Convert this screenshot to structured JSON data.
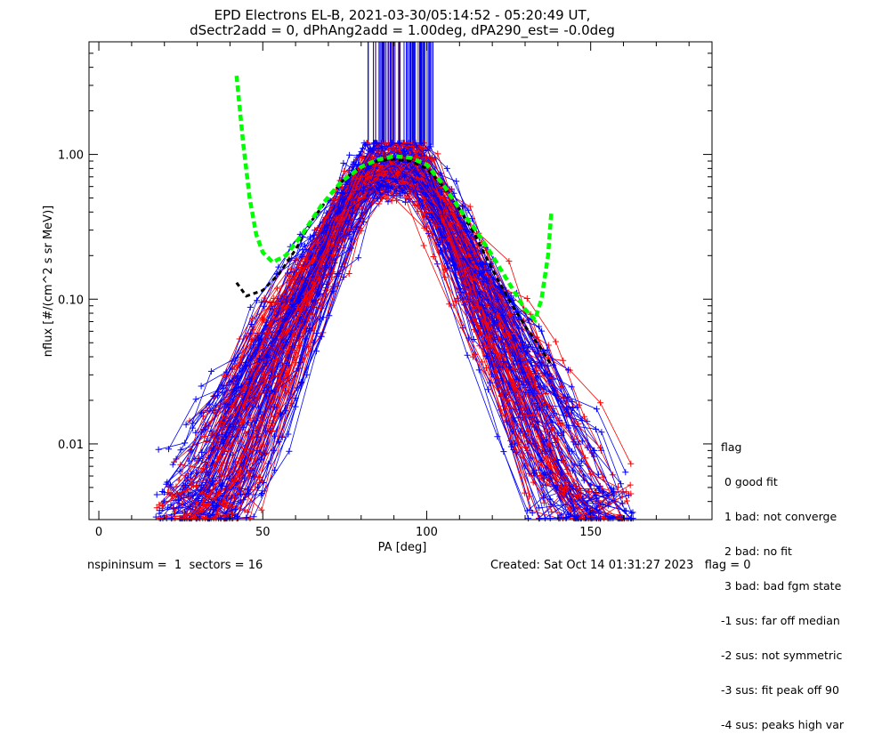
{
  "chart_data": {
    "type": "line",
    "title_line1": "EPD Electrons EL-B, 2021-03-30/05:14:52 - 05:20:49 UT,",
    "title_line2": "dSectr2add = 0, dPhAng2add = 1.00deg, dPA290_est=  -0.0deg",
    "xlabel": "PA [deg]",
    "ylabel": "nflux [#/(cm^2 s sr MeV)]",
    "xlim": [
      -3,
      187
    ],
    "ylim": [
      0.003,
      6.0
    ],
    "yscale": "log",
    "x_ticks": [
      0,
      50,
      100,
      150
    ],
    "x_tick_labels": [
      "0",
      "50",
      "100",
      "150"
    ],
    "y_ticks": [
      0.01,
      0.1,
      1.0
    ],
    "y_tick_labels": [
      "0.01",
      "0.10",
      "1.00"
    ],
    "colors": {
      "red": "#ff0000",
      "blue": "#0000ff",
      "green": "#00ff00",
      "black": "#000000",
      "purple": "#5a1a7a"
    },
    "fit_green_left": [
      [
        42,
        3.5
      ],
      [
        44,
        1.2
      ],
      [
        46,
        0.5
      ],
      [
        48,
        0.28
      ],
      [
        50,
        0.21
      ],
      [
        53,
        0.18
      ],
      [
        57,
        0.2
      ],
      [
        62,
        0.28
      ],
      [
        68,
        0.45
      ],
      [
        74,
        0.65
      ],
      [
        80,
        0.82
      ],
      [
        85,
        0.92
      ],
      [
        90,
        0.97
      ],
      [
        95,
        0.95
      ],
      [
        100,
        0.85
      ],
      [
        105,
        0.62
      ],
      [
        110,
        0.42
      ],
      [
        115,
        0.3
      ],
      [
        120,
        0.2
      ],
      [
        125,
        0.13
      ],
      [
        130,
        0.085
      ],
      [
        133,
        0.072
      ],
      [
        135,
        0.1
      ],
      [
        137,
        0.2
      ],
      [
        138,
        0.4
      ]
    ],
    "fit_black": [
      [
        42,
        0.13
      ],
      [
        45,
        0.105
      ],
      [
        50,
        0.115
      ],
      [
        55,
        0.15
      ],
      [
        60,
        0.22
      ],
      [
        65,
        0.35
      ],
      [
        70,
        0.5
      ],
      [
        75,
        0.68
      ],
      [
        80,
        0.82
      ],
      [
        85,
        0.9
      ],
      [
        90,
        0.93
      ],
      [
        95,
        0.9
      ],
      [
        100,
        0.8
      ],
      [
        105,
        0.6
      ],
      [
        110,
        0.42
      ],
      [
        115,
        0.27
      ],
      [
        120,
        0.16
      ],
      [
        125,
        0.1
      ],
      [
        130,
        0.065
      ],
      [
        135,
        0.045
      ],
      [
        138,
        0.035
      ]
    ],
    "spike_x_range": [
      80,
      106
    ],
    "spike_y_range": [
      1.05,
      6.0
    ],
    "series_note_peak": [
      78,
      100
    ]
  },
  "legend": {
    "title": "flag",
    "items": [
      " 0 good fit",
      " 1 bad: not converge",
      " 2 bad: no fit",
      " 3 bad: bad fgm state",
      "-1 sus: far off median",
      "-2 sus: not symmetric",
      "-3 sus: fit peak off 90",
      "-4 sus: peaks high var"
    ]
  },
  "footer": {
    "left": "nspininsum =  1  sectors = 16",
    "right": "Created: Sat Oct 14 01:31:27 2023   flag = 0"
  }
}
